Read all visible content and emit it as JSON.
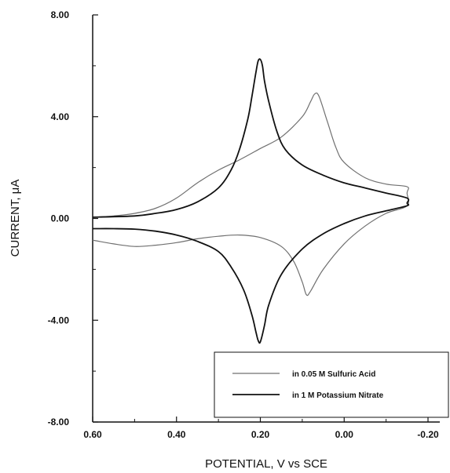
{
  "chart_data": {
    "type": "line",
    "title": "",
    "xlabel": "POTENTIAL, V vs SCE",
    "ylabel": "CURRENT, μA",
    "xlim": [
      0.6,
      -0.2
    ],
    "ylim": [
      -8,
      8
    ],
    "x_reversed": true,
    "grid": false,
    "legend_position": "bottom-right",
    "x_ticks": [
      "0.60",
      "0.40",
      "0.20",
      "0.00",
      "-0.20"
    ],
    "y_ticks": [
      "8.00",
      "4.00",
      "0.00",
      "-4.00",
      "-8.00"
    ],
    "series": [
      {
        "name": "in 0.05 M Sulfuric Acid",
        "color": "#707070",
        "x": [
          0.6,
          0.55,
          0.5,
          0.45,
          0.4,
          0.35,
          0.3,
          0.25,
          0.2,
          0.15,
          0.1,
          0.08,
          0.07,
          0.06,
          0.04,
          0.02,
          0.0,
          -0.05,
          -0.1,
          -0.15,
          -0.15,
          -0.15,
          -0.1,
          -0.05,
          0.0,
          0.05,
          0.08,
          0.09,
          0.1,
          0.12,
          0.15,
          0.2,
          0.25,
          0.3,
          0.35,
          0.4,
          0.45,
          0.5,
          0.55,
          0.6
        ],
        "y": [
          0.05,
          0.1,
          0.2,
          0.4,
          0.8,
          1.4,
          1.9,
          2.3,
          2.75,
          3.2,
          4.0,
          4.6,
          4.9,
          4.8,
          3.8,
          2.8,
          2.2,
          1.6,
          1.35,
          1.25,
          1.0,
          0.5,
          0.2,
          -0.3,
          -1.0,
          -2.0,
          -2.85,
          -3.0,
          -2.5,
          -1.7,
          -1.1,
          -0.75,
          -0.65,
          -0.7,
          -0.8,
          -0.95,
          -1.05,
          -1.1,
          -1.0,
          -0.85
        ]
      },
      {
        "name": "in 1 M Potassium Nitrate",
        "color": "#111111",
        "x": [
          0.6,
          0.5,
          0.45,
          0.4,
          0.35,
          0.3,
          0.27,
          0.25,
          0.23,
          0.22,
          0.21,
          0.205,
          0.2,
          0.195,
          0.19,
          0.18,
          0.16,
          0.14,
          0.1,
          0.05,
          0.0,
          -0.05,
          -0.1,
          -0.15,
          -0.15,
          -0.15,
          -0.1,
          -0.05,
          0.0,
          0.05,
          0.1,
          0.15,
          0.18,
          0.19,
          0.2,
          0.205,
          0.21,
          0.22,
          0.24,
          0.27,
          0.3,
          0.35,
          0.4,
          0.45,
          0.5,
          0.55,
          0.6
        ],
        "y": [
          0.05,
          0.1,
          0.2,
          0.35,
          0.65,
          1.2,
          1.9,
          2.7,
          3.9,
          4.8,
          5.8,
          6.2,
          6.25,
          6.0,
          5.4,
          4.6,
          3.4,
          2.7,
          2.1,
          1.7,
          1.4,
          1.2,
          1.0,
          0.8,
          0.6,
          0.5,
          0.3,
          0.1,
          -0.2,
          -0.6,
          -1.2,
          -2.2,
          -3.4,
          -4.2,
          -4.85,
          -4.8,
          -4.5,
          -3.8,
          -2.8,
          -1.9,
          -1.3,
          -0.9,
          -0.65,
          -0.5,
          -0.42,
          -0.4,
          -0.4
        ]
      }
    ]
  }
}
